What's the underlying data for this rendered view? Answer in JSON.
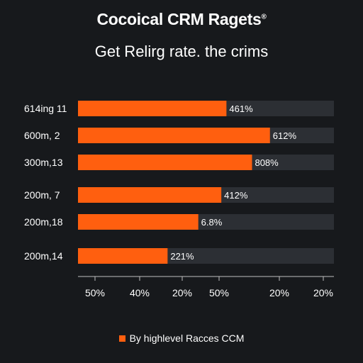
{
  "chart_data": {
    "type": "bar",
    "orientation": "horizontal",
    "title": "Cocoical CRM Ragets",
    "title_mark": "®",
    "subtitle": "Get Relirg rate. the crims",
    "categories": [
      "614ing 11",
      "600m, 2",
      "300m,13",
      "200m, 7",
      "200m,18",
      "200m,14"
    ],
    "values": [
      58,
      75,
      68,
      56,
      47,
      35
    ],
    "value_labels": [
      "461%",
      "612%",
      "808%",
      "412%",
      "6.8%",
      "221%"
    ],
    "xlim": [
      0,
      100
    ],
    "x_tick_labels": [
      "50%",
      "40%",
      "20%",
      "50%",
      "20%",
      "20%"
    ],
    "legend": {
      "position": "bottom",
      "entries": [
        {
          "label": "By highlevel Racces CCM"
        }
      ]
    },
    "grid": false
  },
  "colors": {
    "background": "#17191c",
    "bar": "#ff5f0f",
    "track": "#2c2f34",
    "text": "#ffffff",
    "axis": "#bfbfbf"
  }
}
